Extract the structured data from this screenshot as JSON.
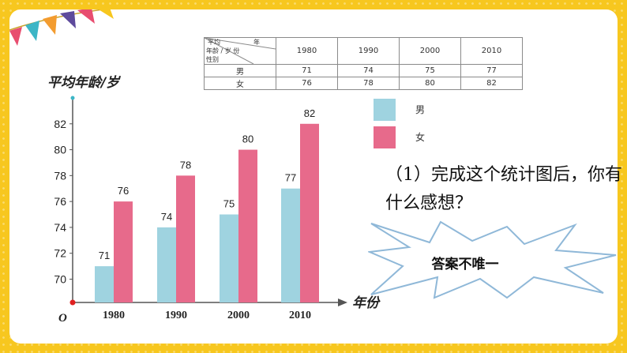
{
  "colors": {
    "frame": "#f7c71f",
    "male": "#9fd3e0",
    "female": "#e76a8b",
    "axis": "#555555",
    "origin_dot": "#e02020"
  },
  "table": {
    "header": {
      "top_right": "年",
      "top_left": "平均",
      "middle": "年龄 / 岁  份",
      "bottom": "性别"
    },
    "years": [
      "1980",
      "1990",
      "2000",
      "2010"
    ],
    "rows": [
      {
        "label": "男",
        "values": [
          "71",
          "74",
          "75",
          "77"
        ]
      },
      {
        "label": "女",
        "values": [
          "76",
          "78",
          "80",
          "82"
        ]
      }
    ]
  },
  "chart_data": {
    "type": "bar",
    "categories": [
      "1980",
      "1990",
      "2000",
      "2010"
    ],
    "series": [
      {
        "name": "男",
        "values": [
          71,
          74,
          75,
          77
        ],
        "color": "#9fd3e0"
      },
      {
        "name": "女",
        "values": [
          76,
          78,
          80,
          82
        ],
        "color": "#e76a8b"
      }
    ],
    "xlabel": "年份",
    "ylabel": "平均年龄/岁",
    "origin_label": "O",
    "yticks": [
      70,
      72,
      74,
      76,
      78,
      80,
      82
    ],
    "ylim": [
      68.2,
      84
    ],
    "legend_position": "right"
  },
  "legend": {
    "male": "男",
    "female": "女"
  },
  "question": "（1）完成这个统计图后，你有什么感想？",
  "answer_burst": "答案不唯一"
}
